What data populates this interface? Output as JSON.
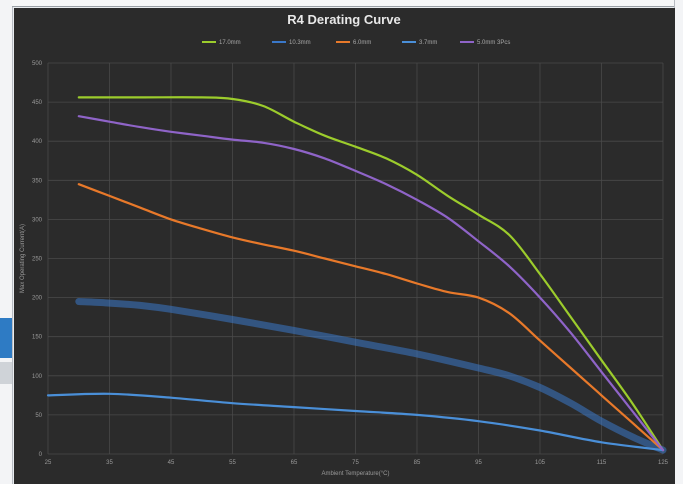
{
  "chart_data": {
    "type": "line",
    "title": "R4 Derating Curve",
    "xlabel": "Ambient Temperature(°C)",
    "ylabel": "Max Operating Current(A)",
    "xlim": [
      25,
      125
    ],
    "ylim": [
      0,
      500
    ],
    "x_ticks": [
      "25",
      "35",
      "45",
      "55",
      "65",
      "75",
      "85",
      "95",
      "105",
      "115",
      "125"
    ],
    "y_ticks": [
      "0",
      "50",
      "100",
      "150",
      "200",
      "250",
      "300",
      "350",
      "400",
      "450",
      "500"
    ],
    "grid": true,
    "legend_position": "top",
    "series": [
      {
        "name": "17.0mm",
        "color": "#9ccc2c",
        "x": [
          30,
          40,
          50,
          55,
          60,
          65,
          70,
          75,
          80,
          85,
          90,
          95,
          100,
          105,
          110,
          115,
          120,
          125
        ],
        "y": [
          456,
          456,
          456,
          454,
          445,
          425,
          407,
          393,
          378,
          357,
          330,
          306,
          280,
          230,
          175,
          120,
          65,
          5
        ]
      },
      {
        "name": "10.3mm",
        "color": "#3a78c9",
        "x": [
          30,
          35,
          40,
          45,
          55,
          65,
          75,
          85,
          95,
          100,
          105,
          110,
          115,
          120,
          125
        ],
        "y": [
          195,
          193,
          190,
          185,
          172,
          158,
          143,
          128,
          110,
          100,
          85,
          65,
          42,
          22,
          5
        ]
      },
      {
        "name": "6.0mm",
        "color": "#e8792a",
        "x": [
          30,
          35,
          40,
          45,
          50,
          55,
          60,
          65,
          70,
          75,
          80,
          85,
          90,
          95,
          100,
          105,
          110,
          115,
          120,
          125
        ],
        "y": [
          345,
          330,
          315,
          300,
          288,
          277,
          268,
          260,
          250,
          240,
          230,
          218,
          207,
          200,
          180,
          145,
          110,
          75,
          40,
          5
        ]
      },
      {
        "name": "3.7mm",
        "color": "#4a8fd8",
        "x": [
          25,
          35,
          45,
          55,
          65,
          75,
          85,
          95,
          105,
          115,
          125
        ],
        "y": [
          75,
          77,
          72,
          65,
          60,
          55,
          50,
          42,
          30,
          15,
          5
        ]
      },
      {
        "name": "5.0mm 3Pcs",
        "color": "#8f64c8",
        "x": [
          30,
          35,
          40,
          45,
          50,
          55,
          60,
          65,
          70,
          75,
          80,
          85,
          90,
          95,
          100,
          105,
          110,
          115,
          120,
          125
        ],
        "y": [
          432,
          425,
          418,
          412,
          407,
          402,
          398,
          390,
          378,
          362,
          345,
          325,
          302,
          272,
          240,
          200,
          155,
          105,
          55,
          5
        ]
      }
    ]
  }
}
